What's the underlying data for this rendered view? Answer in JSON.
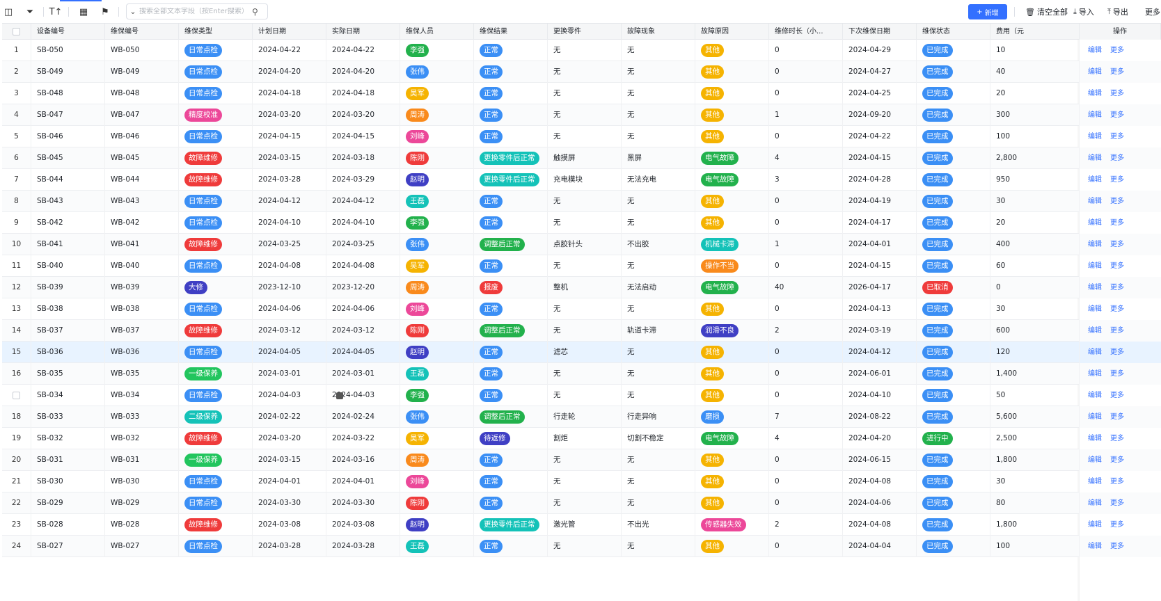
{
  "toolbar": {
    "search_placeholder": "搜索全部文本字段（按Enter搜索）",
    "add_label": "新增",
    "clear_all_label": "清空全部",
    "import_label": "导入",
    "export_label": "导出",
    "more_label": "更多"
  },
  "columns": [
    "设备编号",
    "维保编号",
    "维保类型",
    "计划日期",
    "实际日期",
    "维保人员",
    "维保结果",
    "更换零件",
    "故障现象",
    "故障原因",
    "维修时长（小...",
    "下次维保日期",
    "维保状态",
    "费用（元",
    "操作"
  ],
  "actions": {
    "edit": "编辑",
    "more": "更多"
  },
  "colors": {
    "accent": "#3370ff",
    "类型": {
      "日常点检": "#3b8ff5",
      "精度校准": "#ec4899",
      "故障维修": "#ef3b3b",
      "大修": "#3f3fc4",
      "一级保养": "#22c55e",
      "二级保养": "#14c2b8"
    },
    "人员": {
      "李强": "#22b14c",
      "张伟": "#3b8ff5",
      "吴军": "#f5b301",
      "周涛": "#f98a1c",
      "刘峰": "#ec4899",
      "陈刚": "#ef3b3b",
      "赵明": "#3f3fc4",
      "王磊": "#14c2b8"
    },
    "结果": {
      "正常": "#3b8ff5",
      "更换零件后正常": "#14c2b8",
      "调整后正常": "#22b14c",
      "报废": "#ef3b3b",
      "待返修": "#3f3fc4"
    },
    "原因": {
      "其他": "#f5b301",
      "电气故障": "#22b14c",
      "机械卡滞": "#14c2b8",
      "操作不当": "#f98a1c",
      "润滑不良": "#3f3fc4",
      "磨损": "#3b8ff5",
      "传感器失效": "#ec4899"
    },
    "状态": {
      "已完成": "#3b8ff5",
      "已取消": "#ef3b3b",
      "进行中": "#22b14c"
    }
  },
  "rows": [
    {
      "idx": "1",
      "设备": "SB-050",
      "维保": "WB-050",
      "类型": "日常点检",
      "计划": "2024-04-22",
      "实际": "2024-04-22",
      "人员": "李强",
      "结果": "正常",
      "零件": "无",
      "现象": "无",
      "原因": "其他",
      "时长": "0",
      "下次": "2024-04-29",
      "状态": "已完成",
      "费用": "10"
    },
    {
      "idx": "2",
      "设备": "SB-049",
      "维保": "WB-049",
      "类型": "日常点检",
      "计划": "2024-04-20",
      "实际": "2024-04-20",
      "人员": "张伟",
      "结果": "正常",
      "零件": "无",
      "现象": "无",
      "原因": "其他",
      "时长": "0",
      "下次": "2024-04-27",
      "状态": "已完成",
      "费用": "40"
    },
    {
      "idx": "3",
      "设备": "SB-048",
      "维保": "WB-048",
      "类型": "日常点检",
      "计划": "2024-04-18",
      "实际": "2024-04-18",
      "人员": "吴军",
      "结果": "正常",
      "零件": "无",
      "现象": "无",
      "原因": "其他",
      "时长": "0",
      "下次": "2024-04-25",
      "状态": "已完成",
      "费用": "20"
    },
    {
      "idx": "4",
      "设备": "SB-047",
      "维保": "WB-047",
      "类型": "精度校准",
      "计划": "2024-03-20",
      "实际": "2024-03-20",
      "人员": "周涛",
      "结果": "正常",
      "零件": "无",
      "现象": "无",
      "原因": "其他",
      "时长": "1",
      "下次": "2024-09-20",
      "状态": "已完成",
      "费用": "300"
    },
    {
      "idx": "5",
      "设备": "SB-046",
      "维保": "WB-046",
      "类型": "日常点检",
      "计划": "2024-04-15",
      "实际": "2024-04-15",
      "人员": "刘峰",
      "结果": "正常",
      "零件": "无",
      "现象": "无",
      "原因": "其他",
      "时长": "0",
      "下次": "2024-04-22",
      "状态": "已完成",
      "费用": "100"
    },
    {
      "idx": "6",
      "设备": "SB-045",
      "维保": "WB-045",
      "类型": "故障维修",
      "计划": "2024-03-15",
      "实际": "2024-03-18",
      "人员": "陈刚",
      "结果": "更换零件后正常",
      "零件": "触摸屏",
      "现象": "黑屏",
      "原因": "电气故障",
      "时长": "4",
      "下次": "2024-04-15",
      "状态": "已完成",
      "费用": "2,800"
    },
    {
      "idx": "7",
      "设备": "SB-044",
      "维保": "WB-044",
      "类型": "故障维修",
      "计划": "2024-03-28",
      "实际": "2024-03-29",
      "人员": "赵明",
      "结果": "更换零件后正常",
      "零件": "充电模块",
      "现象": "无法充电",
      "原因": "电气故障",
      "时长": "3",
      "下次": "2024-04-28",
      "状态": "已完成",
      "费用": "950"
    },
    {
      "idx": "8",
      "设备": "SB-043",
      "维保": "WB-043",
      "类型": "日常点检",
      "计划": "2024-04-12",
      "实际": "2024-04-12",
      "人员": "王磊",
      "结果": "正常",
      "零件": "无",
      "现象": "无",
      "原因": "其他",
      "时长": "0",
      "下次": "2024-04-19",
      "状态": "已完成",
      "费用": "30"
    },
    {
      "idx": "9",
      "设备": "SB-042",
      "维保": "WB-042",
      "类型": "日常点检",
      "计划": "2024-04-10",
      "实际": "2024-04-10",
      "人员": "李强",
      "结果": "正常",
      "零件": "无",
      "现象": "无",
      "原因": "其他",
      "时长": "0",
      "下次": "2024-04-17",
      "状态": "已完成",
      "费用": "20"
    },
    {
      "idx": "10",
      "设备": "SB-041",
      "维保": "WB-041",
      "类型": "故障维修",
      "计划": "2024-03-25",
      "实际": "2024-03-25",
      "人员": "张伟",
      "结果": "调整后正常",
      "零件": "点胶针头",
      "现象": "不出胶",
      "原因": "机械卡滞",
      "时长": "1",
      "下次": "2024-04-01",
      "状态": "已完成",
      "费用": "400"
    },
    {
      "idx": "11",
      "设备": "SB-040",
      "维保": "WB-040",
      "类型": "日常点检",
      "计划": "2024-04-08",
      "实际": "2024-04-08",
      "人员": "吴军",
      "结果": "正常",
      "零件": "无",
      "现象": "无",
      "原因": "操作不当",
      "时长": "0",
      "下次": "2024-04-15",
      "状态": "已完成",
      "费用": "60"
    },
    {
      "idx": "12",
      "设备": "SB-039",
      "维保": "WB-039",
      "类型": "大修",
      "计划": "2023-12-10",
      "实际": "2023-12-20",
      "人员": "周涛",
      "结果": "报废",
      "零件": "整机",
      "现象": "无法启动",
      "原因": "电气故障",
      "时长": "40",
      "下次": "2026-04-17",
      "状态": "已取消",
      "费用": "0"
    },
    {
      "idx": "13",
      "设备": "SB-038",
      "维保": "WB-038",
      "类型": "日常点检",
      "计划": "2024-04-06",
      "实际": "2024-04-06",
      "人员": "刘峰",
      "结果": "正常",
      "零件": "无",
      "现象": "无",
      "原因": "其他",
      "时长": "0",
      "下次": "2024-04-13",
      "状态": "已完成",
      "费用": "30"
    },
    {
      "idx": "14",
      "设备": "SB-037",
      "维保": "WB-037",
      "类型": "故障维修",
      "计划": "2024-03-12",
      "实际": "2024-03-12",
      "人员": "陈刚",
      "结果": "调整后正常",
      "零件": "无",
      "现象": "轨道卡滞",
      "原因": "润滑不良",
      "时长": "2",
      "下次": "2024-03-19",
      "状态": "已完成",
      "费用": "600"
    },
    {
      "idx": "15",
      "设备": "SB-036",
      "维保": "WB-036",
      "类型": "日常点检",
      "计划": "2024-04-05",
      "实际": "2024-04-05",
      "人员": "赵明",
      "结果": "正常",
      "零件": "滤芯",
      "现象": "无",
      "原因": "其他",
      "时长": "0",
      "下次": "2024-04-12",
      "状态": "已完成",
      "费用": "120"
    },
    {
      "idx": "16",
      "设备": "SB-035",
      "维保": "WB-035",
      "类型": "一级保养",
      "计划": "2024-03-01",
      "实际": "2024-03-01",
      "人员": "王磊",
      "结果": "正常",
      "零件": "无",
      "现象": "无",
      "原因": "其他",
      "时长": "0",
      "下次": "2024-06-01",
      "状态": "已完成",
      "费用": "1,400"
    },
    {
      "idx": "",
      "设备": "SB-034",
      "维保": "WB-034",
      "类型": "日常点检",
      "计划": "2024-04-03",
      "实际": "2024-04-03",
      "人员": "李强",
      "结果": "正常",
      "零件": "无",
      "现象": "无",
      "原因": "其他",
      "时长": "0",
      "下次": "2024-04-10",
      "状态": "已完成",
      "费用": "50"
    },
    {
      "idx": "18",
      "设备": "SB-033",
      "维保": "WB-033",
      "类型": "二级保养",
      "计划": "2024-02-22",
      "实际": "2024-02-24",
      "人员": "张伟",
      "结果": "调整后正常",
      "零件": "行走轮",
      "现象": "行走异响",
      "原因": "磨损",
      "时长": "7",
      "下次": "2024-08-22",
      "状态": "已完成",
      "费用": "5,600"
    },
    {
      "idx": "19",
      "设备": "SB-032",
      "维保": "WB-032",
      "类型": "故障维修",
      "计划": "2024-03-20",
      "实际": "2024-03-22",
      "人员": "吴军",
      "结果": "待返修",
      "零件": "割炬",
      "现象": "切割不稳定",
      "原因": "电气故障",
      "时长": "4",
      "下次": "2024-04-20",
      "状态": "进行中",
      "费用": "2,500"
    },
    {
      "idx": "20",
      "设备": "SB-031",
      "维保": "WB-031",
      "类型": "一级保养",
      "计划": "2024-03-15",
      "实际": "2024-03-16",
      "人员": "周涛",
      "结果": "正常",
      "零件": "无",
      "现象": "无",
      "原因": "其他",
      "时长": "0",
      "下次": "2024-06-15",
      "状态": "已完成",
      "费用": "1,800"
    },
    {
      "idx": "21",
      "设备": "SB-030",
      "维保": "WB-030",
      "类型": "日常点检",
      "计划": "2024-04-01",
      "实际": "2024-04-01",
      "人员": "刘峰",
      "结果": "正常",
      "零件": "无",
      "现象": "无",
      "原因": "其他",
      "时长": "0",
      "下次": "2024-04-08",
      "状态": "已完成",
      "费用": "30"
    },
    {
      "idx": "22",
      "设备": "SB-029",
      "维保": "WB-029",
      "类型": "日常点检",
      "计划": "2024-03-30",
      "实际": "2024-03-30",
      "人员": "陈刚",
      "结果": "正常",
      "零件": "无",
      "现象": "无",
      "原因": "其他",
      "时长": "0",
      "下次": "2024-04-06",
      "状态": "已完成",
      "费用": "80"
    },
    {
      "idx": "23",
      "设备": "SB-028",
      "维保": "WB-028",
      "类型": "故障维修",
      "计划": "2024-03-08",
      "实际": "2024-03-08",
      "人员": "赵明",
      "结果": "更换零件后正常",
      "零件": "激光管",
      "现象": "不出光",
      "原因": "传感器失效",
      "时长": "2",
      "下次": "2024-04-08",
      "状态": "已完成",
      "费用": "1,800"
    },
    {
      "idx": "24",
      "设备": "SB-027",
      "维保": "WB-027",
      "类型": "日常点检",
      "计划": "2024-03-28",
      "实际": "2024-03-28",
      "人员": "王磊",
      "结果": "正常",
      "零件": "无",
      "现象": "无",
      "原因": "其他",
      "时长": "0",
      "下次": "2024-04-04",
      "状态": "已完成",
      "费用": "100"
    }
  ]
}
